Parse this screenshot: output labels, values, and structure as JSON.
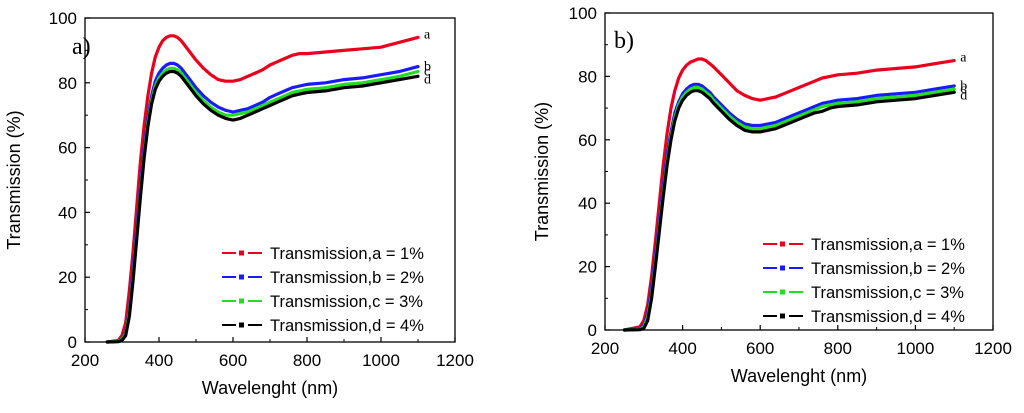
{
  "chart_data": [
    {
      "type": "line",
      "panel_label": "a)",
      "xlabel": "Wavelenght (nm)",
      "ylabel": "Transmission (%)",
      "xlim": [
        200,
        1200
      ],
      "ylim": [
        0,
        100
      ],
      "xticks": [
        200,
        400,
        600,
        800,
        1000,
        1200
      ],
      "yticks": [
        0,
        20,
        40,
        60,
        80,
        100
      ],
      "legend_position": "bottom-right",
      "grid": false,
      "x": [
        260,
        290,
        300,
        310,
        320,
        330,
        340,
        350,
        360,
        370,
        380,
        390,
        400,
        410,
        420,
        430,
        440,
        450,
        460,
        470,
        480,
        500,
        520,
        540,
        560,
        580,
        600,
        620,
        640,
        660,
        680,
        700,
        720,
        740,
        760,
        780,
        800,
        850,
        900,
        950,
        1000,
        1050,
        1100
      ],
      "series": [
        {
          "name": "Transmission,a = 1%",
          "end_label": "a",
          "color": "#e8001c",
          "values": [
            0,
            0.5,
            2,
            6,
            16,
            28,
            42,
            56,
            67,
            76,
            83,
            88,
            91,
            93,
            94,
            94.5,
            94.5,
            94,
            93,
            91.5,
            90,
            87,
            84.5,
            82.5,
            81,
            80.5,
            80.5,
            81,
            82,
            83,
            84,
            85.5,
            86.5,
            87.5,
            88.5,
            89,
            89,
            89.5,
            90,
            90.5,
            91,
            92.5,
            94
          ]
        },
        {
          "name": "Transmission,b = 2%",
          "end_label": "b",
          "color": "#1a1aff",
          "values": [
            0,
            0.2,
            1,
            3,
            10,
            22,
            35,
            48,
            60,
            69,
            76,
            80.5,
            83,
            84.5,
            85.5,
            86,
            86,
            85.5,
            84.5,
            83,
            81.5,
            78.5,
            76,
            74,
            72.5,
            71.5,
            71,
            71.5,
            72,
            73,
            74,
            75.5,
            76.5,
            77.5,
            78.5,
            79,
            79.5,
            80,
            81,
            81.5,
            82.5,
            83.5,
            85
          ]
        },
        {
          "name": "Transmission,c = 3%",
          "end_label": "c",
          "color": "#22dd22",
          "values": [
            0,
            0.2,
            0.8,
            2.5,
            9,
            20,
            33,
            46,
            58,
            67.5,
            74.5,
            79,
            81.5,
            83,
            84,
            84.5,
            84.5,
            84,
            83,
            81.5,
            80,
            77,
            74.5,
            72.5,
            71,
            70,
            70,
            70.5,
            71,
            72,
            73,
            74,
            75,
            76,
            77,
            77.5,
            78,
            78.5,
            79.5,
            80,
            81,
            82,
            83.5
          ]
        },
        {
          "name": "Transmission,d = 4%",
          "end_label": "d",
          "color": "#000000",
          "values": [
            0,
            0.1,
            0.5,
            2,
            8,
            19,
            32,
            45,
            57,
            66.5,
            73.5,
            78,
            80.5,
            82,
            83,
            83.5,
            83.5,
            83,
            82,
            80.5,
            79,
            76,
            73.5,
            71.5,
            70,
            69,
            68.5,
            69,
            70,
            71,
            72,
            73,
            74,
            75,
            76,
            76.5,
            77,
            77.5,
            78.5,
            79,
            80,
            81,
            82
          ]
        }
      ]
    },
    {
      "type": "line",
      "panel_label": "b)",
      "xlabel": "Wavelenght (nm)",
      "ylabel": "Transmission (%)",
      "xlim": [
        200,
        1200
      ],
      "ylim": [
        0,
        100
      ],
      "xticks": [
        200,
        400,
        600,
        800,
        1000,
        1200
      ],
      "yticks": [
        0,
        20,
        40,
        60,
        80,
        100
      ],
      "legend_position": "bottom-right",
      "grid": false,
      "x": [
        250,
        290,
        300,
        310,
        320,
        330,
        340,
        350,
        360,
        370,
        380,
        390,
        400,
        410,
        420,
        430,
        440,
        450,
        460,
        470,
        480,
        500,
        520,
        540,
        560,
        580,
        600,
        620,
        640,
        660,
        680,
        700,
        720,
        740,
        760,
        780,
        800,
        850,
        900,
        950,
        1000,
        1050,
        1100
      ],
      "series": [
        {
          "name": "Transmission,a = 1%",
          "end_label": "a",
          "color": "#e8001c",
          "values": [
            0,
            1,
            3,
            8,
            17,
            28,
            40,
            52,
            62,
            70,
            75.5,
            79.5,
            82,
            83.5,
            84.5,
            85,
            85.5,
            85.5,
            85,
            84,
            83,
            80.5,
            78,
            75.5,
            74,
            73,
            72.5,
            73,
            73.5,
            74.5,
            75.5,
            76.5,
            77.5,
            78.5,
            79.5,
            80,
            80.5,
            81,
            82,
            82.5,
            83,
            84,
            85
          ]
        },
        {
          "name": "Transmission,b = 2%",
          "end_label": "b",
          "color": "#1a1aff",
          "values": [
            0,
            0.3,
            1.5,
            5,
            13,
            23,
            34,
            45,
            55,
            62.5,
            68.5,
            72,
            74.5,
            76,
            77,
            77.5,
            77.5,
            77,
            76,
            75,
            73.5,
            71,
            68.5,
            66.5,
            65,
            64.5,
            64.5,
            65,
            65.5,
            66.5,
            67.5,
            68.5,
            69.5,
            70.5,
            71.5,
            72,
            72.5,
            73,
            74,
            74.5,
            75,
            76,
            77
          ]
        },
        {
          "name": "Transmission,c = 3%",
          "end_label": "c",
          "color": "#22dd22",
          "values": [
            0,
            0.2,
            1,
            4,
            11,
            21,
            32,
            43,
            53,
            61,
            67,
            71,
            73.5,
            75,
            76,
            76.5,
            76.5,
            76,
            75,
            74,
            72.5,
            70,
            67.5,
            65.5,
            64,
            63.5,
            63.5,
            64,
            64.5,
            65.5,
            66.5,
            67.5,
            68.5,
            69.5,
            70.5,
            71,
            71.5,
            72,
            73,
            73.5,
            74,
            75,
            76
          ]
        },
        {
          "name": "Transmission,d = 4%",
          "end_label": "d",
          "color": "#000000",
          "values": [
            0,
            0.1,
            0.5,
            3,
            10,
            20,
            31,
            42,
            52,
            60,
            66,
            70,
            72.5,
            74,
            75,
            75.5,
            75.5,
            75,
            74,
            73,
            71.5,
            69,
            66.5,
            64.5,
            63,
            62.5,
            62.5,
            63,
            63.5,
            64.5,
            65.5,
            66.5,
            67.5,
            68.5,
            69,
            70,
            70.5,
            71,
            72,
            72.5,
            73,
            74,
            75
          ]
        }
      ]
    }
  ]
}
